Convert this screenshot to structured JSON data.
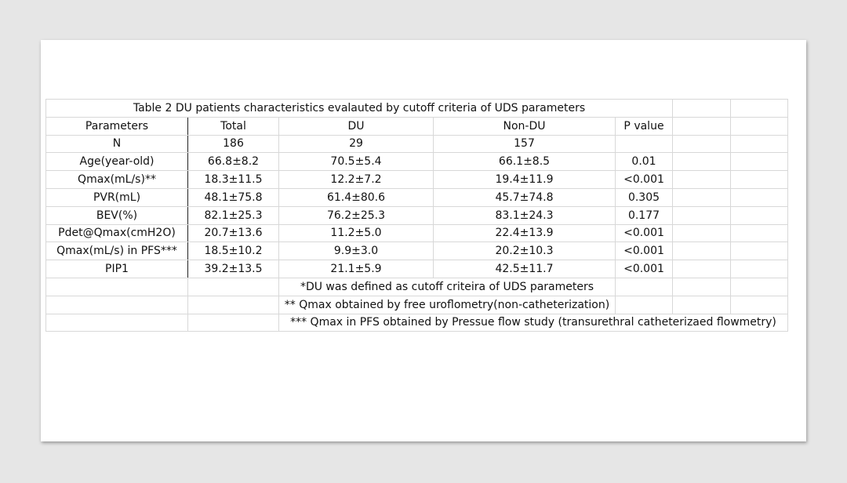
{
  "table": {
    "title": "Table 2 DU patients characteristics evalauted by cutoff criteria of UDS parameters",
    "headers": [
      "Parameters",
      "Total",
      "DU",
      "Non-DU",
      "P value"
    ],
    "rows": [
      [
        "N",
        "186",
        "29",
        "157",
        ""
      ],
      [
        "Age(year-old)",
        "66.8±8.2",
        "70.5±5.4",
        "66.1±8.5",
        "0.01"
      ],
      [
        "Qmax(mL/s)**",
        "18.3±11.5",
        "12.2±7.2",
        "19.4±11.9",
        "<0.001"
      ],
      [
        "PVR(mL)",
        "48.1±75.8",
        "61.4±80.6",
        "45.7±74.8",
        "0.305"
      ],
      [
        "BEV(%)",
        "82.1±25.3",
        "76.2±25.3",
        "83.1±24.3",
        "0.177"
      ],
      [
        "Pdet@Qmax(cmH2O)",
        "20.7±13.6",
        "11.2±5.0",
        "22.4±13.9",
        "<0.001"
      ],
      [
        "Qmax(mL/s) in PFS***",
        "18.5±10.2",
        "9.9±3.0",
        "20.2±10.3",
        "<0.001"
      ],
      [
        "PIP1",
        "39.2±13.5",
        "21.1±5.9",
        "42.5±11.7",
        "<0.001"
      ]
    ],
    "notes": [
      "*DU was defined as cutoff criteira of UDS parameters",
      "** Qmax obtained by free uroflometry(non-catheterization)",
      "*** Qmax in PFS obtained by Pressue flow study (transurethral catheterizaed flowmetry)"
    ]
  }
}
